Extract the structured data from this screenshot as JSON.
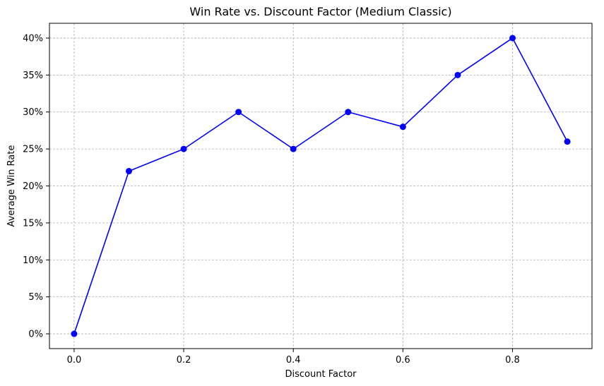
{
  "chart_data": {
    "type": "line",
    "title": "Win Rate vs. Discount Factor (Medium Classic)",
    "xlabel": "Discount Factor",
    "ylabel": "Average Win Rate",
    "xlim": [
      -0.045,
      0.945
    ],
    "ylim": [
      -0.02,
      0.42
    ],
    "x_ticks": [
      0.0,
      0.2,
      0.4,
      0.6,
      0.8
    ],
    "x_tick_labels": [
      "0.0",
      "0.2",
      "0.4",
      "0.6",
      "0.8"
    ],
    "y_ticks": [
      0.0,
      0.05,
      0.1,
      0.15,
      0.2,
      0.25,
      0.3,
      0.35,
      0.4
    ],
    "y_tick_labels": [
      "0%",
      "5%",
      "10%",
      "15%",
      "20%",
      "25%",
      "30%",
      "35%",
      "40%"
    ],
    "grid": true,
    "series": [
      {
        "name": "Win Rate",
        "color": "#0000ff",
        "marker": "circle",
        "x": [
          0.0,
          0.1,
          0.2,
          0.3,
          0.4,
          0.5,
          0.6,
          0.7,
          0.8,
          0.9
        ],
        "values": [
          0.0,
          0.22,
          0.25,
          0.3,
          0.25,
          0.3,
          0.28,
          0.35,
          0.4,
          0.26
        ]
      }
    ]
  }
}
